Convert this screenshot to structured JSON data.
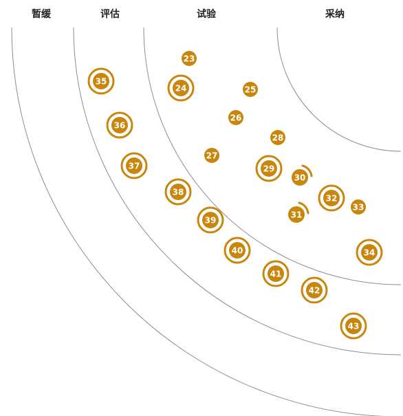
{
  "rings": [
    {
      "id": "hold",
      "label": "暂缓"
    },
    {
      "id": "assess",
      "label": "评估"
    },
    {
      "id": "trial",
      "label": "试验"
    },
    {
      "id": "adopt",
      "label": "采纳"
    }
  ],
  "colors": {
    "blip": "#c8860d",
    "arc": "#8c8c8c",
    "text": "#222222"
  },
  "blips": [
    {
      "id": "23",
      "style": "plain"
    },
    {
      "id": "24",
      "style": "ring"
    },
    {
      "id": "25",
      "style": "plain"
    },
    {
      "id": "26",
      "style": "plain"
    },
    {
      "id": "27",
      "style": "plain"
    },
    {
      "id": "28",
      "style": "plain"
    },
    {
      "id": "29",
      "style": "ring"
    },
    {
      "id": "30",
      "style": "arc-out"
    },
    {
      "id": "31",
      "style": "arc-in"
    },
    {
      "id": "32",
      "style": "ring"
    },
    {
      "id": "33",
      "style": "plain"
    },
    {
      "id": "34",
      "style": "ring"
    },
    {
      "id": "35",
      "style": "ring"
    },
    {
      "id": "36",
      "style": "ring"
    },
    {
      "id": "37",
      "style": "ring"
    },
    {
      "id": "38",
      "style": "ring"
    },
    {
      "id": "39",
      "style": "ring"
    },
    {
      "id": "40",
      "style": "ring"
    },
    {
      "id": "41",
      "style": "ring"
    },
    {
      "id": "42",
      "style": "ring"
    },
    {
      "id": "43",
      "style": "ring"
    }
  ]
}
